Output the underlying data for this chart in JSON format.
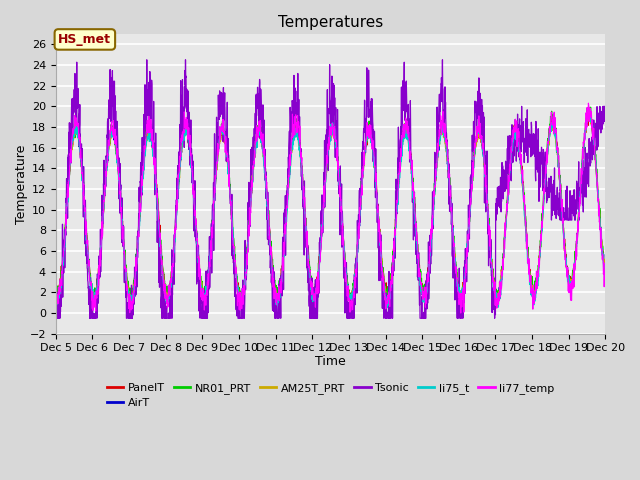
{
  "title": "Temperatures",
  "xlabel": "Time",
  "ylabel": "Temperature",
  "ylim": [
    -2,
    27
  ],
  "xlim": [
    0,
    15
  ],
  "xtick_labels": [
    "Dec 5",
    "Dec 6",
    "Dec 7",
    "Dec 8",
    "Dec 9",
    "Dec 10",
    "Dec 11",
    "Dec 12",
    "Dec 13",
    "Dec 14",
    "Dec 15",
    "Dec 16",
    "Dec 17",
    "Dec 18",
    "Dec 19",
    "Dec 20"
  ],
  "xtick_positions": [
    0,
    1,
    2,
    3,
    4,
    5,
    6,
    7,
    8,
    9,
    10,
    11,
    12,
    13,
    14,
    15
  ],
  "ytick_positions": [
    -2,
    0,
    2,
    4,
    6,
    8,
    10,
    12,
    14,
    16,
    18,
    20,
    22,
    24,
    26
  ],
  "series_order": [
    "PanelT",
    "AirT",
    "NR01_PRT",
    "AM25T_PRT",
    "Tsonic",
    "li75_t",
    "li77_temp"
  ],
  "series": {
    "PanelT": {
      "color": "#dd0000",
      "lw": 0.8
    },
    "AirT": {
      "color": "#0000cc",
      "lw": 0.8
    },
    "NR01_PRT": {
      "color": "#00cc00",
      "lw": 0.8
    },
    "AM25T_PRT": {
      "color": "#ccaa00",
      "lw": 0.8
    },
    "Tsonic": {
      "color": "#8800cc",
      "lw": 0.9
    },
    "li75_t": {
      "color": "#00cccc",
      "lw": 0.8
    },
    "li77_temp": {
      "color": "#ff00ff",
      "lw": 0.8
    }
  },
  "annotation_text": "HS_met",
  "annotation_fg": "#990000",
  "annotation_bg": "#ffffcc",
  "annotation_edge": "#886600",
  "background_color": "#d8d8d8",
  "plot_bg_color": "#e8e8e8",
  "grid_color": "#ffffff",
  "title_fontsize": 11,
  "axis_fontsize": 9,
  "tick_fontsize": 8,
  "legend_fontsize": 8
}
